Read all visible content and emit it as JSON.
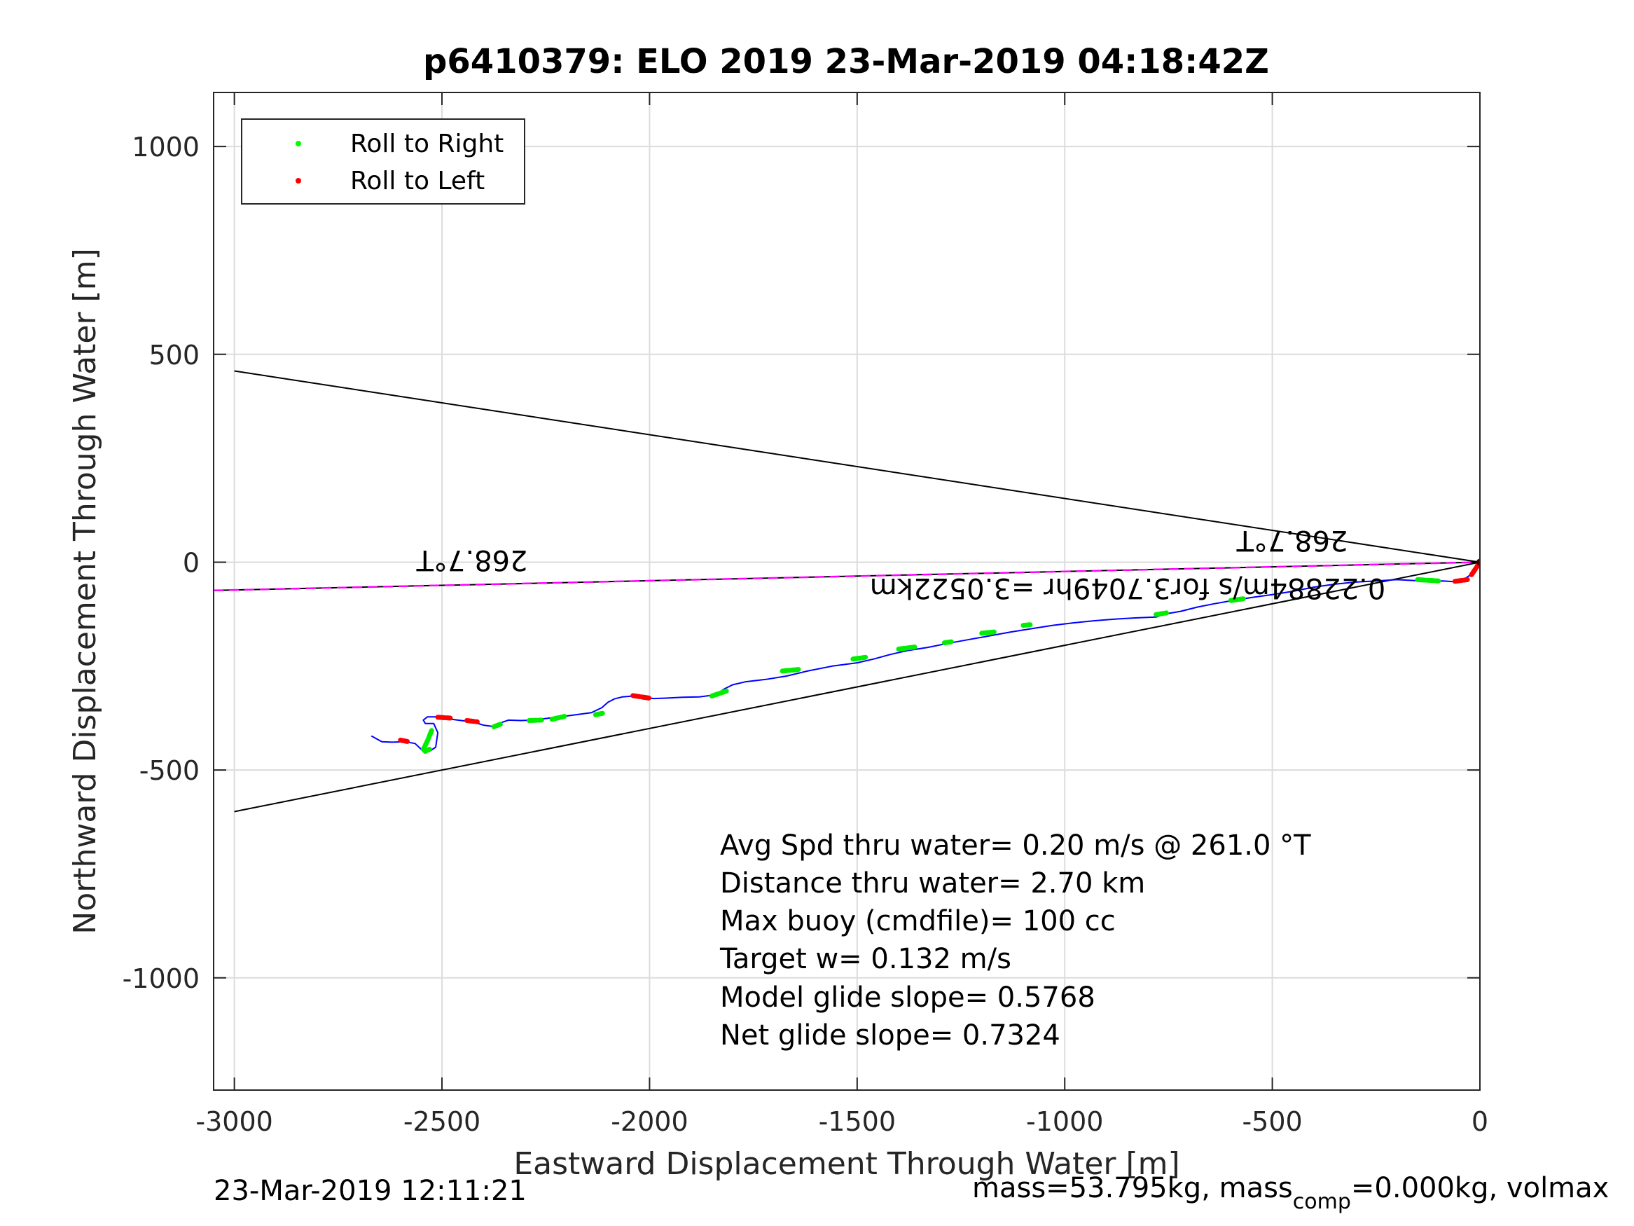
{
  "chart_data": {
    "type": "line",
    "title": "p6410379: ELO 2019 23-Mar-2019 04:18:42Z",
    "xlabel": "Eastward Displacement Through Water [m]",
    "ylabel": "Northward Displacement Through Water [m]",
    "xlim": [
      -3050,
      0
    ],
    "ylim": [
      -1270,
      1130
    ],
    "xticks": [
      -3000,
      -2500,
      -2000,
      -1500,
      -1000,
      -500,
      0
    ],
    "yticks": [
      -1000,
      -500,
      0,
      500,
      1000
    ],
    "grid": true,
    "legend": {
      "placement": "top-left",
      "entries": [
        {
          "label": "Roll to Right",
          "color": "#00ff00"
        },
        {
          "label": "Roll to Left",
          "color": "#ff0000"
        }
      ]
    },
    "series": [
      {
        "color": "#0000ff",
        "x": [
          -2670,
          -2645,
          -2620,
          -2590,
          -2565,
          -2545,
          -2530,
          -2515,
          -2510,
          -2520,
          -2540,
          -2545,
          -2535,
          -2515,
          -2495,
          -2470,
          -2445,
          -2420,
          -2400,
          -2380,
          -2360,
          -2340,
          -2310,
          -2280,
          -2250,
          -2220,
          -2200,
          -2170,
          -2140,
          -2115,
          -2100,
          -2085,
          -2065,
          -2040,
          -2015,
          -1990,
          -1960,
          -1920,
          -1880,
          -1840,
          -1820,
          -1800,
          -1770,
          -1720,
          -1670,
          -1620,
          -1560,
          -1500,
          -1460,
          -1420,
          -1380,
          -1330,
          -1280,
          -1230,
          -1180,
          -1130,
          -1080,
          -1030,
          -980,
          -930,
          -880,
          -830,
          -780,
          -760,
          -720,
          -680,
          -640,
          -600,
          -550,
          -500,
          -450,
          -400,
          -350,
          -300,
          -250,
          -200,
          -160,
          -120,
          -90,
          -60,
          -40,
          -25,
          -12,
          -5,
          0
        ],
        "y": [
          -418,
          -432,
          -433,
          -432,
          -436,
          -455,
          -455,
          -445,
          -410,
          -388,
          -388,
          -380,
          -372,
          -372,
          -375,
          -379,
          -382,
          -386,
          -392,
          -395,
          -387,
          -380,
          -381,
          -380,
          -376,
          -372,
          -370,
          -366,
          -362,
          -350,
          -337,
          -329,
          -324,
          -322,
          -325,
          -328,
          -327,
          -325,
          -324,
          -319,
          -305,
          -295,
          -288,
          -282,
          -274,
          -262,
          -250,
          -242,
          -233,
          -222,
          -213,
          -205,
          -195,
          -186,
          -177,
          -168,
          -160,
          -152,
          -146,
          -141,
          -137,
          -134,
          -132,
          -125,
          -118,
          -108,
          -100,
          -93,
          -85,
          -78,
          -70,
          -60,
          -53,
          -48,
          -45,
          -42,
          -44,
          -46,
          -45,
          -47,
          -42,
          -32,
          -18,
          -8,
          0
        ]
      }
    ],
    "reference_lines": [
      {
        "color": "#000000",
        "x": [
          -3000,
          0
        ],
        "y": [
          460,
          0
        ]
      },
      {
        "color": "#000000",
        "x": [
          -3000,
          0
        ],
        "y": [
          -600,
          0
        ]
      },
      {
        "color": "#000000",
        "x": [
          -3050,
          0
        ],
        "y": [
          -68,
          0
        ]
      },
      {
        "color": "#ff00ff",
        "x": [
          -3050,
          0
        ],
        "y": [
          -68,
          0
        ],
        "dashed": true
      }
    ],
    "roll_right_segments": [
      {
        "x": [
          -2525,
          -2535,
          -2545,
          -2540,
          -2530
        ],
        "y": [
          -405,
          -430,
          -450,
          -455,
          -450
        ]
      },
      {
        "x": [
          -2375,
          -2355
        ],
        "y": [
          -396,
          -388
        ]
      },
      {
        "x": [
          -2290,
          -2260
        ],
        "y": [
          -381,
          -380
        ]
      },
      {
        "x": [
          -2235,
          -2205
        ],
        "y": [
          -378,
          -371
        ]
      },
      {
        "x": [
          -2130,
          -2110
        ],
        "y": [
          -367,
          -363
        ]
      },
      {
        "x": [
          -1850,
          -1815
        ],
        "y": [
          -322,
          -310
        ]
      },
      {
        "x": [
          -1680,
          -1640
        ],
        "y": [
          -262,
          -258
        ]
      },
      {
        "x": [
          -1510,
          -1480
        ],
        "y": [
          -233,
          -229
        ]
      },
      {
        "x": [
          -1400,
          -1360
        ],
        "y": [
          -209,
          -204
        ]
      },
      {
        "x": [
          -1290,
          -1270
        ],
        "y": [
          -194,
          -191
        ]
      },
      {
        "x": [
          -1200,
          -1170
        ],
        "y": [
          -171,
          -168
        ]
      },
      {
        "x": [
          -1100,
          -1080
        ],
        "y": [
          -152,
          -150
        ]
      },
      {
        "x": [
          -780,
          -755
        ],
        "y": [
          -126,
          -122
        ]
      },
      {
        "x": [
          -600,
          -570
        ],
        "y": [
          -92,
          -88
        ]
      },
      {
        "x": [
          -150,
          -100
        ],
        "y": [
          -42,
          -45
        ]
      }
    ],
    "roll_left_segments": [
      {
        "x": [
          -2600,
          -2580
        ],
        "y": [
          -428,
          -432
        ]
      },
      {
        "x": [
          -2510,
          -2480
        ],
        "y": [
          -373,
          -375
        ]
      },
      {
        "x": [
          -2440,
          -2415
        ],
        "y": [
          -381,
          -384
        ]
      },
      {
        "x": [
          -2040,
          -2000
        ],
        "y": [
          -321,
          -327
        ]
      },
      {
        "x": [
          -60,
          -30
        ],
        "y": [
          -46,
          -42
        ]
      },
      {
        "x": [
          -20,
          -8,
          -2
        ],
        "y": [
          -30,
          -12,
          -2
        ]
      }
    ],
    "direction_labels": [
      "268.7°T",
      "268.7°T"
    ],
    "speed_label": "0.22884m/s for3.7049hr =3.0522km",
    "annotations": [
      "Avg Spd thru water=  0.20 m/s @ 261.0 °T",
      "Distance thru water=  2.70 km",
      "Max buoy (cmdfile)= 100 cc",
      "Target w= 0.132 m/s",
      "Model glide slope= 0.5768",
      "Net glide slope= 0.7324"
    ],
    "footer_left": "23-Mar-2019 12:11:21",
    "footer_right": {
      "part1": "mass=53.795kg, mass",
      "sub": "comp",
      "part2": "=0.000kg, volmax"
    }
  }
}
